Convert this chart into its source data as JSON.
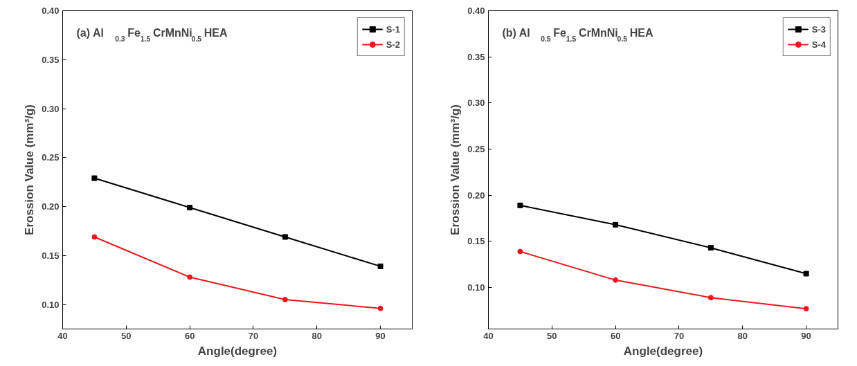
{
  "chart_data": [
    {
      "type": "line",
      "annotations": [
        "(a) Al$_{0.3}$Fe$_{1.5}$CrMnNi$_{0.5}$ HEA"
      ],
      "xlabel": "Angle(degree)",
      "ylabel": "Erossion Value (mm³/g)",
      "x": [
        45,
        60,
        75,
        90
      ],
      "xlim": [
        40,
        95
      ],
      "xticks": [
        40,
        50,
        60,
        70,
        80,
        90
      ],
      "ylim": [
        0.075,
        0.4
      ],
      "yticks": [
        {
          "value": 0.1,
          "label": "0.10"
        },
        {
          "value": 0.15,
          "label": "0.15"
        },
        {
          "value": 0.2,
          "label": "0.20"
        },
        {
          "value": 0.25,
          "label": "0.25"
        },
        {
          "value": 0.3,
          "label": "0.30"
        },
        {
          "value": 0.35,
          "label": "0.35"
        },
        {
          "value": 0.4,
          "label": "0.40"
        }
      ],
      "grid": false,
      "legend": "top right",
      "series": [
        {
          "name": "S-1",
          "color": "#000000",
          "marker": "square",
          "values": [
            0.229,
            0.199,
            0.169,
            0.139
          ]
        },
        {
          "name": "S-2",
          "color": "#e8191c",
          "marker": "circle",
          "values": [
            0.169,
            0.128,
            0.105,
            0.096
          ]
        }
      ]
    },
    {
      "type": "line",
      "annotations": [
        "(b) Al$_{0.5}$Fe$_{1.5}$CrMnNi$_{0.5}$ HEA"
      ],
      "xlabel": "Angle(degree)",
      "ylabel": "Erossion Value (mm³/g)",
      "x": [
        45,
        60,
        75,
        90
      ],
      "xlim": [
        40,
        95
      ],
      "xticks": [
        40,
        50,
        60,
        70,
        80,
        90
      ],
      "ylim": [
        0.055,
        0.4
      ],
      "yticks": [
        {
          "value": 0.1,
          "label": "0.10"
        },
        {
          "value": 0.15,
          "label": "0.15"
        },
        {
          "value": 0.2,
          "label": "0.20"
        },
        {
          "value": 0.25,
          "label": "0.25"
        },
        {
          "value": 0.3,
          "label": "0.30"
        },
        {
          "value": 0.35,
          "label": "0.35"
        },
        {
          "value": 0.4,
          "label": "0.40"
        }
      ],
      "grid": false,
      "legend": "top right",
      "series": [
        {
          "name": "S-3",
          "color": "#000000",
          "marker": "square",
          "values": [
            0.189,
            0.168,
            0.143,
            0.115
          ]
        },
        {
          "name": "S-4",
          "color": "#e8191c",
          "marker": "circle",
          "values": [
            0.139,
            0.108,
            0.089,
            0.077
          ]
        }
      ]
    }
  ]
}
